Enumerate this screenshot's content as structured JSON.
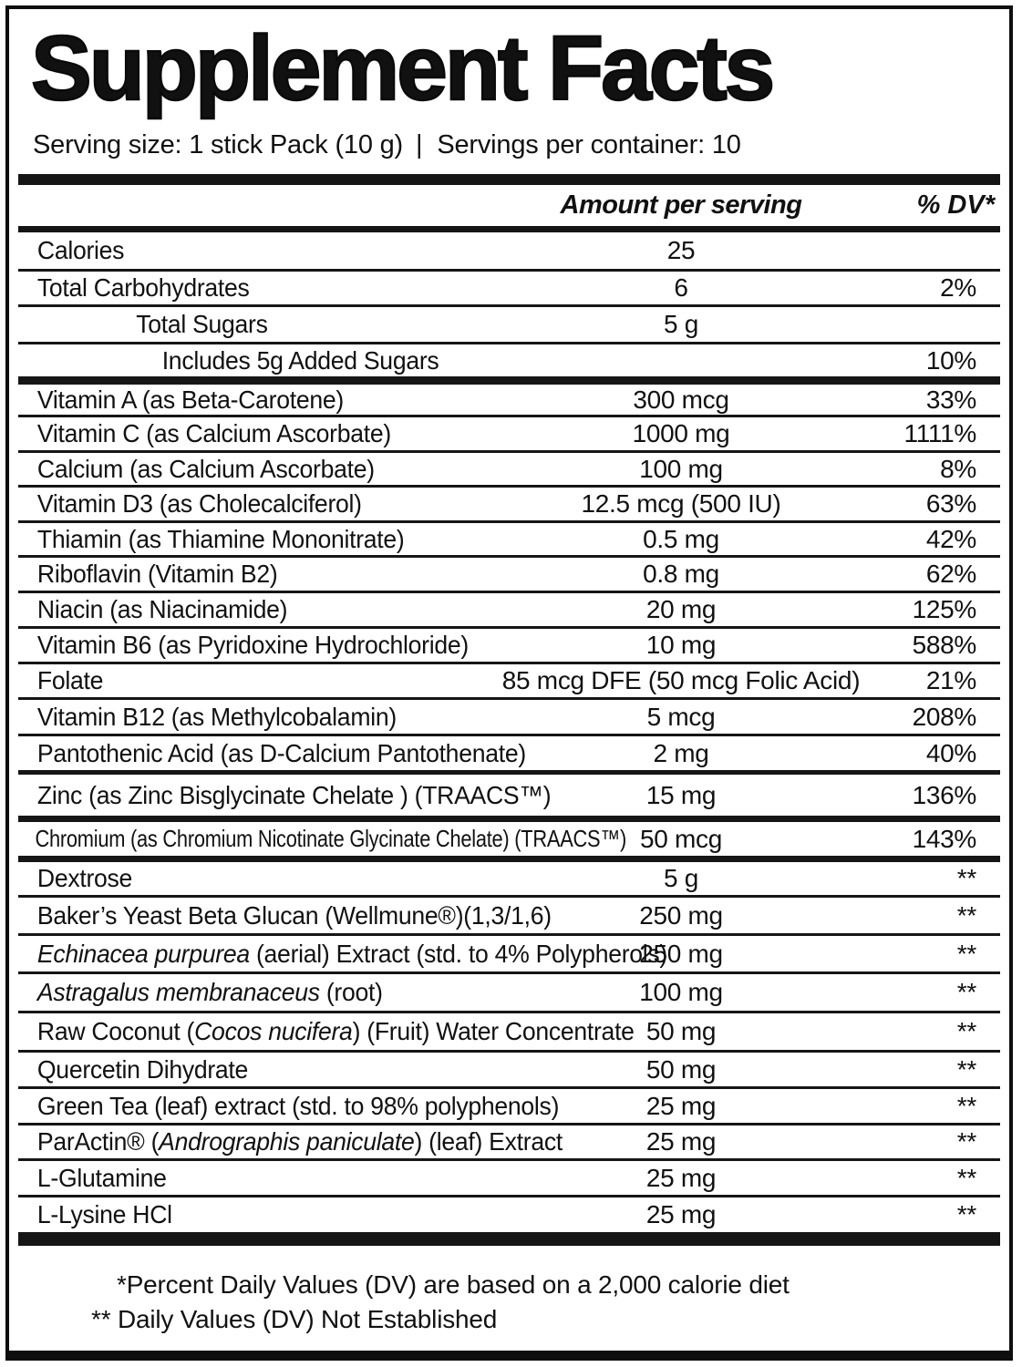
{
  "label": {
    "title": "Supplement Facts",
    "serving": {
      "size_text": "Serving size: 1 stick Pack (10 g)",
      "divider": "|",
      "per_container_text": "Servings per container: 10"
    },
    "column_headers": {
      "amount": "Amount per serving",
      "dv": "% DV*"
    },
    "rows": [
      {
        "name": "Calories",
        "amount": "25",
        "dv": ""
      },
      {
        "name": "Total Carbohydrates",
        "amount": "6",
        "dv": "2%"
      },
      {
        "name": "Total Sugars",
        "amount": "5 g",
        "dv": ""
      },
      {
        "name": "Includes 5g Added Sugars",
        "amount": "",
        "dv": "10%"
      },
      {
        "name": "Vitamin A (as Beta-Carotene)",
        "amount": "300 mcg",
        "dv": "33%"
      },
      {
        "name": "Vitamin C (as Calcium Ascorbate)",
        "amount": "1000 mg",
        "dv": "1111%"
      },
      {
        "name": "Calcium (as Calcium Ascorbate)",
        "amount": "100 mg",
        "dv": "8%"
      },
      {
        "name": "Vitamin D3 (as Cholecalciferol)",
        "amount": "12.5 mcg (500 IU)",
        "dv": "63%"
      },
      {
        "name": "Thiamin (as Thiamine Mononitrate)",
        "amount": "0.5 mg",
        "dv": "42%"
      },
      {
        "name": "Riboflavin (Vitamin B2)",
        "amount": "0.8 mg",
        "dv": "62%"
      },
      {
        "name": "Niacin (as Niacinamide)",
        "amount": "20 mg",
        "dv": "125%"
      },
      {
        "name": "Vitamin B6 (as Pyridoxine Hydrochloride)",
        "amount": "10 mg",
        "dv": "588%"
      },
      {
        "name": "Folate",
        "amount": "85 mcg DFE (50 mcg Folic Acid)",
        "dv": "21%"
      },
      {
        "name": "Vitamin B12 (as Methylcobalamin)",
        "amount": "5 mcg",
        "dv": "208%"
      },
      {
        "name": "Pantothenic Acid (as D-Calcium Pantothenate)",
        "amount": "2 mg",
        "dv": "40%"
      },
      {
        "name": "Zinc (as Zinc Bisglycinate Chelate ) (TRAACS™)",
        "amount": "15 mg",
        "dv": "136%"
      },
      {
        "name": "Chromium (as Chromium Nicotinate Glycinate Chelate) (TRAACS™)",
        "amount": "50 mcg",
        "dv": "143%"
      },
      {
        "name": "Dextrose",
        "amount": "5 g",
        "dv": "**"
      },
      {
        "name": "Baker’s Yeast Beta Glucan (Wellmune®)(1,3/1,6)",
        "amount": "250 mg",
        "dv": "**"
      },
      {
        "name": [
          {
            "t": "Echinacea purpurea",
            "i": true
          },
          {
            "t": " (aerial) Extract (std. to 4% Polypherols)",
            "i": false
          }
        ],
        "amount": "250 mg",
        "dv": "**"
      },
      {
        "name": [
          {
            "t": "Astragalus membranaceus",
            "i": true
          },
          {
            "t": " (root)",
            "i": false
          }
        ],
        "amount": "100 mg",
        "dv": "**"
      },
      {
        "name": [
          {
            "t": "Raw Coconut (",
            "i": false
          },
          {
            "t": "Cocos nucifera",
            "i": true
          },
          {
            "t": ") (Fruit) Water Concentrate",
            "i": false
          }
        ],
        "amount": "50 mg",
        "dv": "**"
      },
      {
        "name": "Quercetin Dihydrate",
        "amount": "50 mg",
        "dv": "**"
      },
      {
        "name": "Green Tea (leaf) extract (std. to 98% polyphenols)",
        "amount": "25 mg",
        "dv": "**"
      },
      {
        "name": [
          {
            "t": "ParActin® (",
            "i": false
          },
          {
            "t": "Andrographis paniculate",
            "i": true
          },
          {
            "t": ") (leaf) Extract",
            "i": false
          }
        ],
        "amount": "25 mg",
        "dv": "**"
      },
      {
        "name": "L-Glutamine",
        "amount": "25 mg",
        "dv": "**"
      },
      {
        "name": "L-Lysine HCl",
        "amount": "25 mg",
        "dv": "**"
      }
    ],
    "footnotes": {
      "dv_basis": "*Percent Daily Values (DV) are based on a 2,000 calorie diet",
      "not_established": "** Daily Values (DV) Not Established"
    }
  }
}
